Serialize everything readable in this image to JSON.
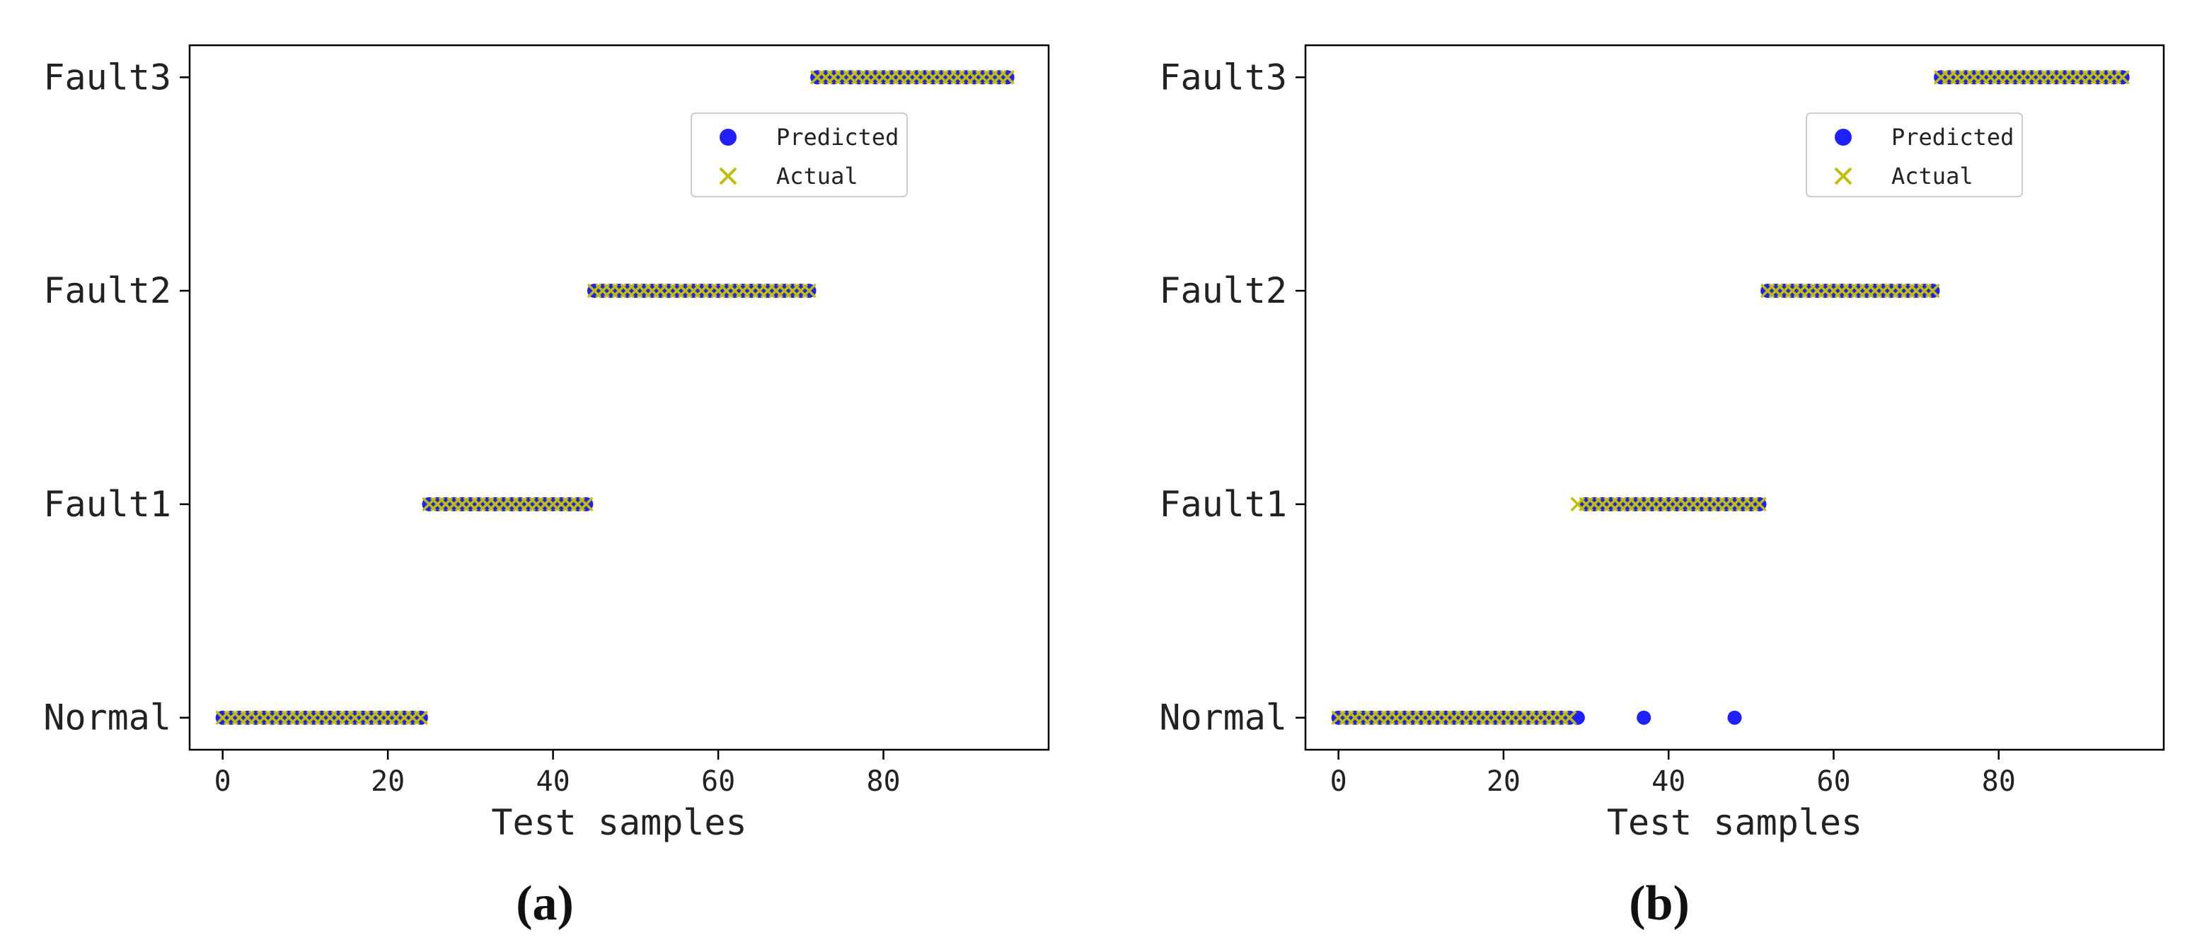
{
  "chart_data": [
    {
      "type": "scatter",
      "panel_label": "(a)",
      "xlabel": "Test samples",
      "ylabel": "",
      "xlim": [
        -4,
        100
      ],
      "ylim": [
        -0.15,
        3.15
      ],
      "x_ticks": [
        0,
        20,
        40,
        60,
        80
      ],
      "y_categories": [
        "Normal",
        "Fault1",
        "Fault2",
        "Fault3"
      ],
      "grid": false,
      "legend_position": "upper-right",
      "series": [
        {
          "name": "Predicted",
          "marker": "circle",
          "color": "#1f1fff",
          "segments": [
            {
              "class": "Normal",
              "x_from": 0,
              "x_to": 24
            },
            {
              "class": "Fault1",
              "x_from": 25,
              "x_to": 44
            },
            {
              "class": "Fault2",
              "x_from": 45,
              "x_to": 71
            },
            {
              "class": "Fault3",
              "x_from": 72,
              "x_to": 95
            }
          ],
          "extra_points": []
        },
        {
          "name": "Actual",
          "marker": "x",
          "color": "#bfbf00",
          "segments": [
            {
              "class": "Normal",
              "x_from": 0,
              "x_to": 24
            },
            {
              "class": "Fault1",
              "x_from": 25,
              "x_to": 44
            },
            {
              "class": "Fault2",
              "x_from": 45,
              "x_to": 71
            },
            {
              "class": "Fault3",
              "x_from": 72,
              "x_to": 95
            }
          ],
          "extra_points": []
        }
      ]
    },
    {
      "type": "scatter",
      "panel_label": "(b)",
      "xlabel": "Test samples",
      "ylabel": "",
      "xlim": [
        -4,
        100
      ],
      "ylim": [
        -0.15,
        3.15
      ],
      "x_ticks": [
        0,
        20,
        40,
        60,
        80
      ],
      "y_categories": [
        "Normal",
        "Fault1",
        "Fault2",
        "Fault3"
      ],
      "grid": false,
      "legend_position": "upper-right",
      "series": [
        {
          "name": "Predicted",
          "marker": "circle",
          "color": "#1f1fff",
          "segments": [
            {
              "class": "Normal",
              "x_from": 0,
              "x_to": 29
            },
            {
              "class": "Fault1",
              "x_from": 30,
              "x_to": 51
            },
            {
              "class": "Fault2",
              "x_from": 52,
              "x_to": 72
            },
            {
              "class": "Fault3",
              "x_from": 73,
              "x_to": 95
            }
          ],
          "extra_points": [
            {
              "class": "Normal",
              "x": 37
            },
            {
              "class": "Normal",
              "x": 48
            }
          ]
        },
        {
          "name": "Actual",
          "marker": "x",
          "color": "#bfbf00",
          "segments": [
            {
              "class": "Normal",
              "x_from": 0,
              "x_to": 28
            },
            {
              "class": "Fault1",
              "x_from": 29,
              "x_to": 51
            },
            {
              "class": "Fault2",
              "x_from": 52,
              "x_to": 72
            },
            {
              "class": "Fault3",
              "x_from": 73,
              "x_to": 95
            }
          ],
          "extra_points": []
        }
      ]
    }
  ]
}
